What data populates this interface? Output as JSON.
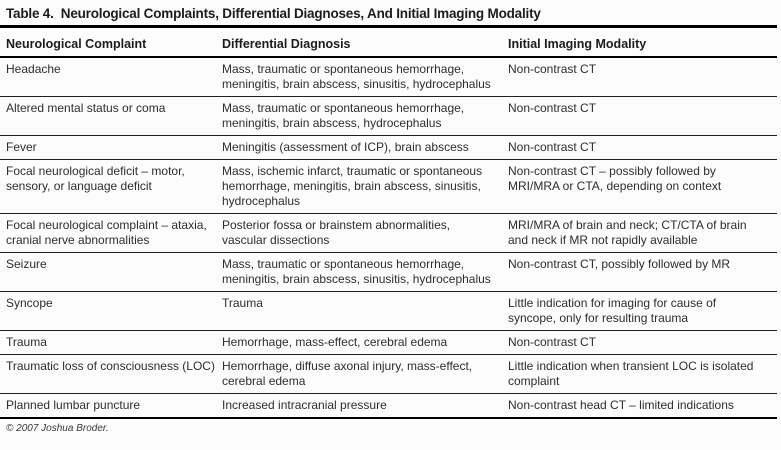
{
  "page": {
    "title": "Table 4.  Neurological Complaints, Differential Diagnoses, And Initial Imaging Modality",
    "copyright": "© 2007 Joshua Broder."
  },
  "table": {
    "columns": [
      "Neurological Complaint",
      "Differential Diagnosis",
      "Initial Imaging Modality"
    ],
    "rows": [
      {
        "complaint": "Headache",
        "diagnosis": "Mass, traumatic or spontaneous hemorrhage, meningitis, brain abscess, sinusitis, hydrocephalus",
        "imaging": "Non-contrast CT"
      },
      {
        "complaint": "Altered mental status or coma",
        "diagnosis": "Mass, traumatic or spontaneous hemorrhage, meningitis, brain abscess, hydrocephalus",
        "imaging": "Non-contrast CT"
      },
      {
        "complaint": "Fever",
        "diagnosis": "Meningitis (assessment of ICP), brain abscess",
        "imaging": "Non-contrast CT"
      },
      {
        "complaint": "Focal neurological deficit – motor, sensory, or language deficit",
        "diagnosis": "Mass, ischemic infarct, traumatic or spontaneous hemorrhage, meningitis, brain abscess, sinusitis, hydrocephalus",
        "imaging": "Non-contrast CT – possibly followed by MRI/MRA or CTA, depending on context"
      },
      {
        "complaint": "Focal neurological complaint – ataxia, cranial nerve abnormalities",
        "diagnosis": "Posterior fossa or brainstem abnormalities, vascular dissections",
        "imaging": "MRI/MRA of brain and neck; CT/CTA of brain and neck if MR not rapidly available"
      },
      {
        "complaint": "Seizure",
        "diagnosis": "Mass, traumatic or spontaneous hemorrhage, meningitis, brain abscess, sinusitis, hydrocephalus",
        "imaging": "Non-contrast CT, possibly followed by MR"
      },
      {
        "complaint": "Syncope",
        "diagnosis": "Trauma",
        "imaging": "Little indication for imaging for cause of syncope, only for resulting trauma"
      },
      {
        "complaint": "Trauma",
        "diagnosis": "Hemorrhage, mass-effect, cerebral edema",
        "imaging": "Non-contrast CT"
      },
      {
        "complaint": "Traumatic loss of consciousness (LOC)",
        "diagnosis": "Hemorrhage, diffuse axonal injury, mass-effect, cerebral edema",
        "imaging": "Little indication when transient LOC is isolated complaint"
      },
      {
        "complaint": "Planned lumbar puncture",
        "diagnosis": "Increased intracranial pressure",
        "imaging": "Non-contrast head CT – limited indications"
      }
    ]
  },
  "colors": {
    "rule": "#000000",
    "text": "#2e2e2e",
    "background": "#fcfcfc"
  }
}
